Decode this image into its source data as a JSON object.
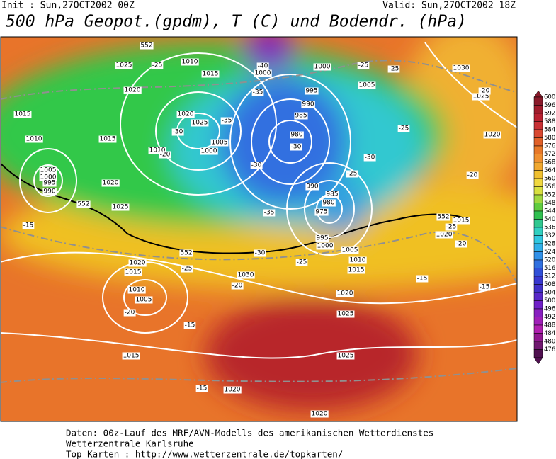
{
  "header": {
    "init": "Init : Sun,27OCT2002 00Z",
    "valid": "Valid: Sun,27OCT2002 18Z",
    "title": "500 hPa Geopot.(gpdm), T (C) und Bodendr. (hPa)"
  },
  "map": {
    "labels": [
      "1025",
      "1010",
      "1015",
      "1020",
      "1015",
      "1010",
      "1015",
      "1020",
      "1025",
      "1005",
      "1000",
      "1010",
      "1005",
      "1000",
      "995",
      "990",
      "1020",
      "1025",
      "1000",
      "1000",
      "995",
      "990",
      "985",
      "980",
      "1005",
      "1030",
      "1025",
      "1020",
      "990",
      "985",
      "980",
      "975",
      "995",
      "1000",
      "1005",
      "1010",
      "1015",
      "1015",
      "1020",
      "1020",
      "1015",
      "1010",
      "1005",
      "1030",
      "1020",
      "1025",
      "1025",
      "1015",
      "1020",
      "1020",
      "-40",
      "-35",
      "-25",
      "-25",
      "-25",
      "-20",
      "-35",
      "-30",
      "-30",
      "-25",
      "-30",
      "-30",
      "-20",
      "-25",
      "-20",
      "-15",
      "-35",
      "-30",
      "-25",
      "-25",
      "-20",
      "-25",
      "-20",
      "-15",
      "-15",
      "-20",
      "-15",
      "-15",
      "552",
      "552",
      "552",
      "552"
    ]
  },
  "legend": {
    "labels": [
      600,
      596,
      592,
      588,
      584,
      580,
      576,
      572,
      568,
      564,
      560,
      556,
      552,
      548,
      544,
      540,
      536,
      532,
      528,
      524,
      520,
      516,
      512,
      508,
      504,
      500,
      496,
      492,
      488,
      484,
      480,
      476
    ]
  },
  "footer": {
    "lines": [
      "Daten: 00z-Lauf des MRF/AVN-Modells des amerikanischen Wetterdienstes",
      "Wetterzentrale Karlsruhe",
      "Top Karten :  http://www.wetterzentrale.de/topkarten/"
    ]
  }
}
